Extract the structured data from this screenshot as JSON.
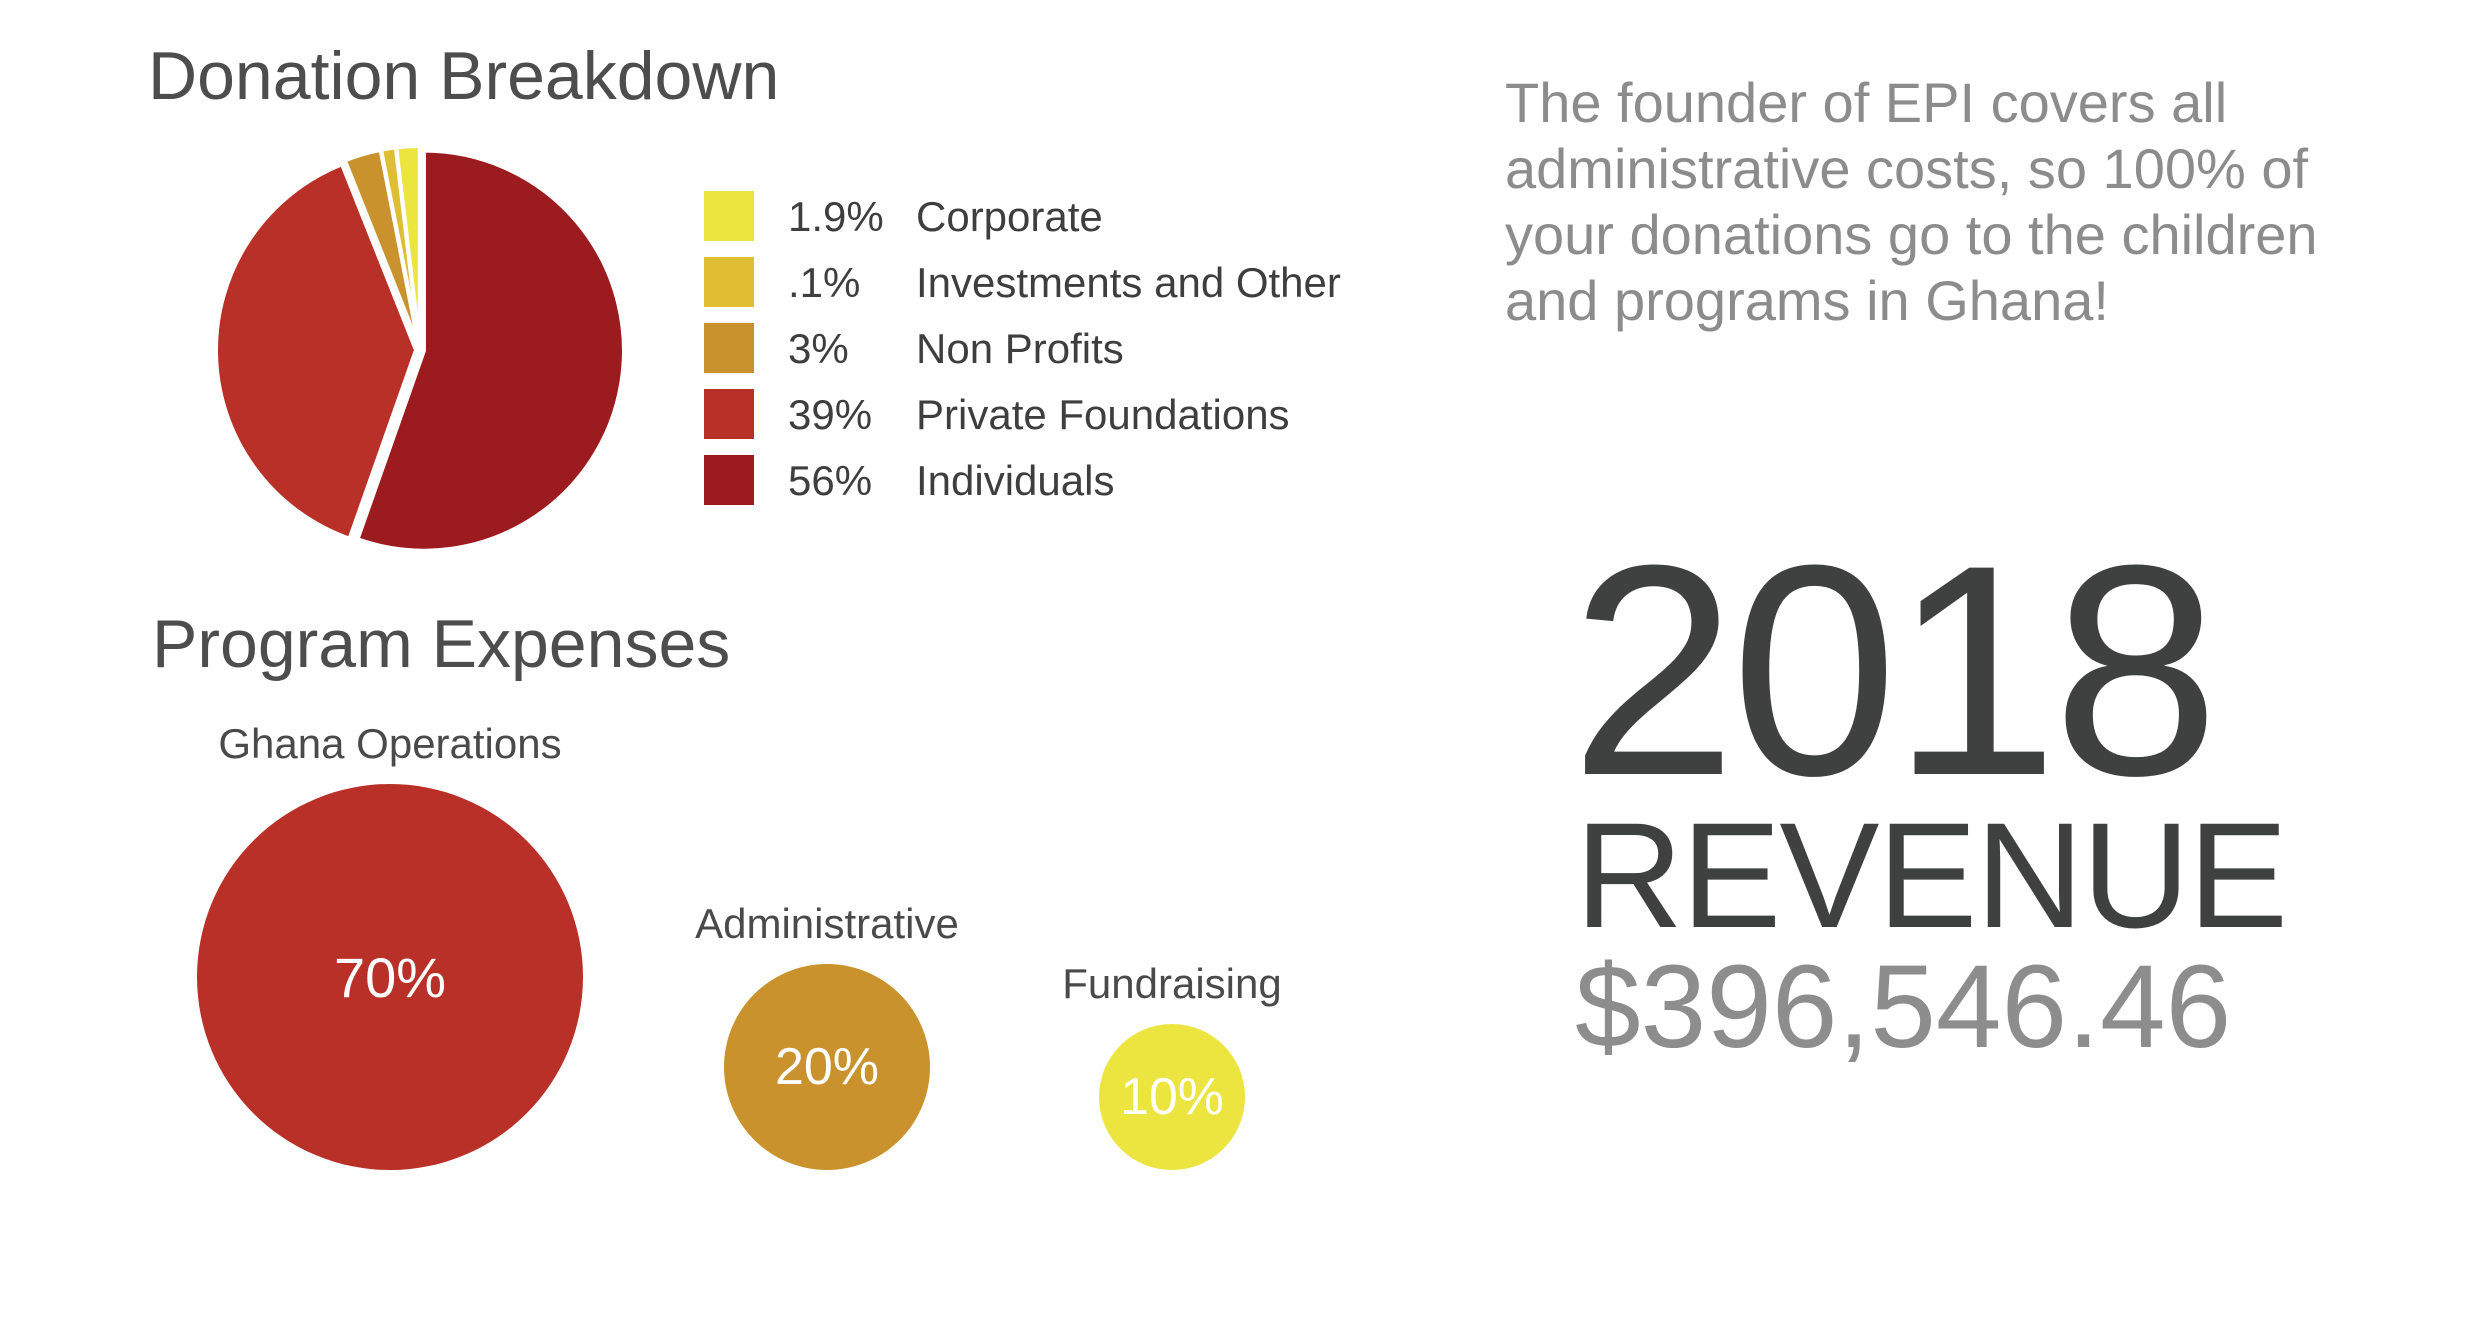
{
  "chart_data": [
    {
      "type": "pie",
      "title": "Donation Breakdown",
      "slices": [
        {
          "label": "Individuals",
          "pct_label": "56%",
          "value": 56,
          "color": "#9c1b1f"
        },
        {
          "label": "Private Foundations",
          "pct_label": "39%",
          "value": 39,
          "color": "#b83028"
        },
        {
          "label": "Non Profits",
          "pct_label": "3%",
          "value": 3,
          "color": "#c9922c"
        },
        {
          "label": "Investments and Other",
          "pct_label": ".1%",
          "value": 0.1,
          "color": "#e0be34"
        },
        {
          "label": "Corporate",
          "pct_label": "1.9%",
          "value": 1.9,
          "color": "#ece53f"
        }
      ],
      "legend_order": [
        "Corporate",
        "Investments and Other",
        "Non Profits",
        "Private Foundations",
        "Individuals"
      ],
      "legend_position": "right"
    },
    {
      "type": "bubble",
      "title": "Program Expenses",
      "items": [
        {
          "label": "Ghana Operations",
          "value": 70,
          "value_label": "70%",
          "color": "#b83028"
        },
        {
          "label": "Administrative",
          "value": 20,
          "value_label": "20%",
          "color": "#c9922c"
        },
        {
          "label": "Fundraising",
          "value": 10,
          "value_label": "10%",
          "color": "#ece53f"
        }
      ]
    }
  ],
  "note": "The founder of EPI covers all administrative costs, so 100% of your donations go to the children and programs in Ghana!",
  "headline": {
    "year": "2018",
    "label": "REVENUE",
    "amount": "$396,546.46"
  }
}
